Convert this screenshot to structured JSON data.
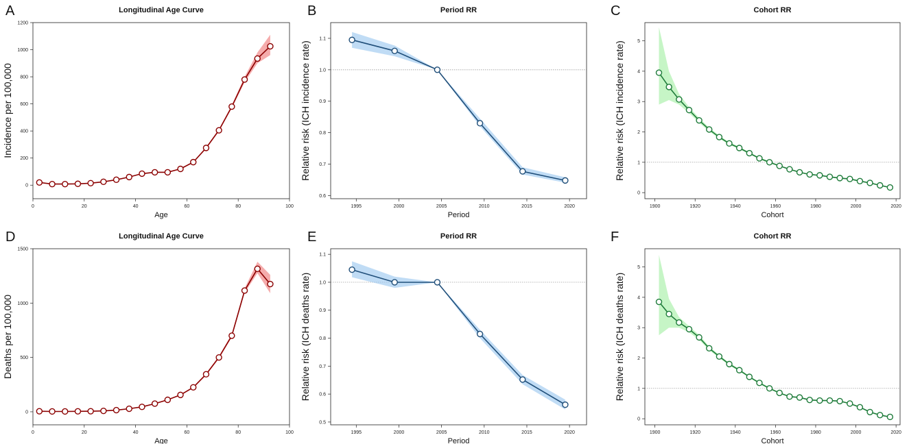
{
  "chart_data": [
    {
      "letter": "A",
      "type": "line",
      "title": "Longitudinal Age Curve",
      "xlabel": "Age",
      "ylabel": "Incidence per 100,000",
      "xlim": [
        0,
        100
      ],
      "ylim": [
        -100,
        1200
      ],
      "xticks": [
        0,
        20,
        40,
        60,
        80,
        100
      ],
      "yticks": [
        0,
        200,
        400,
        600,
        800,
        1000,
        1200
      ],
      "ytick_labels": [
        "0",
        "200",
        "400",
        "600",
        "800",
        "1000",
        "1200"
      ],
      "reference_line": null,
      "color": "#8b0000",
      "band_color": "#f08080",
      "x": [
        2.5,
        7.5,
        12.5,
        17.5,
        22.5,
        27.5,
        32.5,
        37.5,
        42.5,
        47.5,
        52.5,
        57.5,
        62.5,
        67.5,
        72.5,
        77.5,
        82.5,
        87.5,
        92.5
      ],
      "y": [
        20,
        8,
        8,
        10,
        15,
        25,
        40,
        60,
        85,
        95,
        95,
        120,
        170,
        275,
        405,
        580,
        780,
        935,
        1025
      ],
      "lower": [
        18,
        7,
        7,
        9,
        14,
        24,
        38,
        58,
        82,
        92,
        92,
        116,
        165,
        268,
        396,
        568,
        760,
        900,
        960
      ],
      "upper": [
        22,
        9,
        9,
        11,
        16,
        26,
        42,
        62,
        88,
        98,
        98,
        124,
        175,
        282,
        414,
        592,
        800,
        980,
        1110
      ]
    },
    {
      "letter": "B",
      "type": "line",
      "title": "Period RR",
      "xlabel": "Period",
      "ylabel": "Relative risk (ICH incidence rate)",
      "xlim": [
        1992,
        2022
      ],
      "ylim": [
        0.59,
        1.15
      ],
      "xticks": [
        1995,
        2000,
        2005,
        2010,
        2015,
        2020
      ],
      "yticks": [
        0.6,
        0.7,
        0.8,
        0.9,
        1.0,
        1.1
      ],
      "ytick_labels": [
        "0.6",
        "0.7",
        "0.8",
        "0.9",
        "1.0",
        "1.1"
      ],
      "reference_line": 1.0,
      "color": "#1f4e79",
      "band_color": "#9ec9f0",
      "x": [
        1994.5,
        1999.5,
        2004.5,
        2009.5,
        2014.5,
        2019.5
      ],
      "y": [
        1.095,
        1.06,
        1.0,
        0.83,
        0.677,
        0.648
      ],
      "lower": [
        1.07,
        1.043,
        1.0,
        0.82,
        0.667,
        0.641
      ],
      "upper": [
        1.12,
        1.077,
        1.0,
        0.845,
        0.69,
        0.658
      ]
    },
    {
      "letter": "C",
      "type": "line",
      "title": "Cohort RR",
      "xlabel": "Cohort",
      "ylabel": "Relative risk (ICH incidence rate)",
      "xlim": [
        1895,
        2022
      ],
      "ylim": [
        -0.2,
        5.6
      ],
      "xticks": [
        1900,
        1920,
        1940,
        1960,
        1980,
        2000,
        2020
      ],
      "yticks": [
        0,
        1,
        2,
        3,
        4,
        5
      ],
      "ytick_labels": [
        "0",
        "1",
        "2",
        "3",
        "4",
        "5"
      ],
      "reference_line": 1,
      "color": "#1e7b3a",
      "band_color": "#a8f0a8",
      "x": [
        1902,
        1907,
        1912,
        1917,
        1922,
        1927,
        1932,
        1937,
        1942,
        1947,
        1952,
        1957,
        1962,
        1967,
        1972,
        1977,
        1982,
        1987,
        1992,
        1997,
        2002,
        2007,
        2012,
        2017
      ],
      "y": [
        3.95,
        3.48,
        3.07,
        2.72,
        2.38,
        2.08,
        1.83,
        1.62,
        1.47,
        1.3,
        1.13,
        1.0,
        0.88,
        0.77,
        0.67,
        0.6,
        0.57,
        0.52,
        0.48,
        0.45,
        0.38,
        0.32,
        0.24,
        0.17
      ],
      "lower": [
        2.9,
        3.05,
        2.9,
        2.62,
        2.3,
        2.02,
        1.78,
        1.58,
        1.43,
        1.27,
        1.1,
        0.97,
        0.86,
        0.75,
        0.65,
        0.58,
        0.55,
        0.5,
        0.46,
        0.43,
        0.36,
        0.3,
        0.22,
        0.15
      ],
      "upper": [
        5.45,
        4.0,
        3.25,
        2.82,
        2.46,
        2.14,
        1.88,
        1.66,
        1.51,
        1.33,
        1.16,
        1.03,
        0.9,
        0.79,
        0.69,
        0.62,
        0.59,
        0.54,
        0.5,
        0.47,
        0.4,
        0.34,
        0.26,
        0.19
      ]
    },
    {
      "letter": "D",
      "type": "line",
      "title": "Longitudinal Age Curve",
      "xlabel": "Age",
      "ylabel": "Deaths per 100,000",
      "xlim": [
        0,
        100
      ],
      "ylim": [
        -120,
        1500
      ],
      "xticks": [
        0,
        20,
        40,
        60,
        80,
        100
      ],
      "yticks": [
        0,
        500,
        1000,
        1500
      ],
      "ytick_labels": [
        "0",
        "500",
        "1000",
        "1500"
      ],
      "reference_line": null,
      "color": "#8b0000",
      "band_color": "#f08080",
      "x": [
        2.5,
        7.5,
        12.5,
        17.5,
        22.5,
        27.5,
        32.5,
        37.5,
        42.5,
        47.5,
        52.5,
        57.5,
        62.5,
        67.5,
        72.5,
        77.5,
        82.5,
        87.5,
        92.5
      ],
      "y": [
        5,
        3,
        3,
        4,
        5,
        8,
        15,
        28,
        45,
        75,
        110,
        155,
        225,
        345,
        500,
        700,
        1115,
        1315,
        1175
      ],
      "lower": [
        4,
        2,
        2,
        3,
        4,
        7,
        13,
        26,
        42,
        71,
        105,
        149,
        218,
        336,
        488,
        685,
        1095,
        1275,
        1090
      ],
      "upper": [
        6,
        4,
        4,
        5,
        6,
        9,
        17,
        30,
        48,
        79,
        115,
        161,
        232,
        354,
        512,
        715,
        1135,
        1380,
        1260
      ]
    },
    {
      "letter": "E",
      "type": "line",
      "title": "Period RR",
      "xlabel": "Period",
      "ylabel": "Relative risk (ICH deaths rate)",
      "xlim": [
        1992,
        2022
      ],
      "ylim": [
        0.49,
        1.12
      ],
      "xticks": [
        1995,
        2000,
        2005,
        2010,
        2015,
        2020
      ],
      "yticks": [
        0.5,
        0.6,
        0.7,
        0.8,
        0.9,
        1.0,
        1.1
      ],
      "ytick_labels": [
        "0.5",
        "0.6",
        "0.7",
        "0.8",
        "0.9",
        "1.0",
        "1.1"
      ],
      "reference_line": 1.0,
      "color": "#1f4e79",
      "band_color": "#9ec9f0",
      "x": [
        1994.5,
        1999.5,
        2004.5,
        2009.5,
        2014.5,
        2019.5
      ],
      "y": [
        1.045,
        1.0,
        1.0,
        0.815,
        0.652,
        0.562
      ],
      "lower": [
        1.018,
        0.98,
        1.0,
        0.8,
        0.635,
        0.545
      ],
      "upper": [
        1.075,
        1.02,
        1.0,
        0.83,
        0.668,
        0.58
      ]
    },
    {
      "letter": "F",
      "type": "line",
      "title": "Cohort RR",
      "xlabel": "Cohort",
      "ylabel": "Relative risk (ICH deaths rate)",
      "xlim": [
        1895,
        2022
      ],
      "ylim": [
        -0.2,
        5.6
      ],
      "xticks": [
        1900,
        1920,
        1940,
        1960,
        1980,
        2000,
        2020
      ],
      "yticks": [
        0,
        1,
        2,
        3,
        4,
        5
      ],
      "ytick_labels": [
        "0",
        "1",
        "2",
        "3",
        "4",
        "5"
      ],
      "reference_line": 1,
      "color": "#1e7b3a",
      "band_color": "#a8f0a8",
      "x": [
        1902,
        1907,
        1912,
        1917,
        1922,
        1927,
        1932,
        1937,
        1942,
        1947,
        1952,
        1957,
        1962,
        1967,
        1972,
        1977,
        1982,
        1987,
        1992,
        1997,
        2002,
        2007,
        2012,
        2017
      ],
      "y": [
        3.85,
        3.45,
        3.17,
        2.95,
        2.68,
        2.32,
        2.05,
        1.8,
        1.6,
        1.38,
        1.18,
        1.0,
        0.85,
        0.73,
        0.7,
        0.62,
        0.6,
        0.6,
        0.58,
        0.5,
        0.38,
        0.22,
        0.12,
        0.06
      ],
      "lower": [
        2.75,
        3.0,
        3.0,
        2.85,
        2.6,
        2.26,
        2.0,
        1.76,
        1.56,
        1.35,
        1.15,
        0.97,
        0.83,
        0.71,
        0.68,
        0.6,
        0.58,
        0.58,
        0.56,
        0.48,
        0.36,
        0.2,
        0.1,
        0.04
      ],
      "upper": [
        5.4,
        3.95,
        3.35,
        3.05,
        2.76,
        2.38,
        2.1,
        1.84,
        1.64,
        1.41,
        1.21,
        1.03,
        0.87,
        0.75,
        0.72,
        0.64,
        0.62,
        0.62,
        0.6,
        0.52,
        0.4,
        0.24,
        0.14,
        0.08
      ]
    }
  ]
}
